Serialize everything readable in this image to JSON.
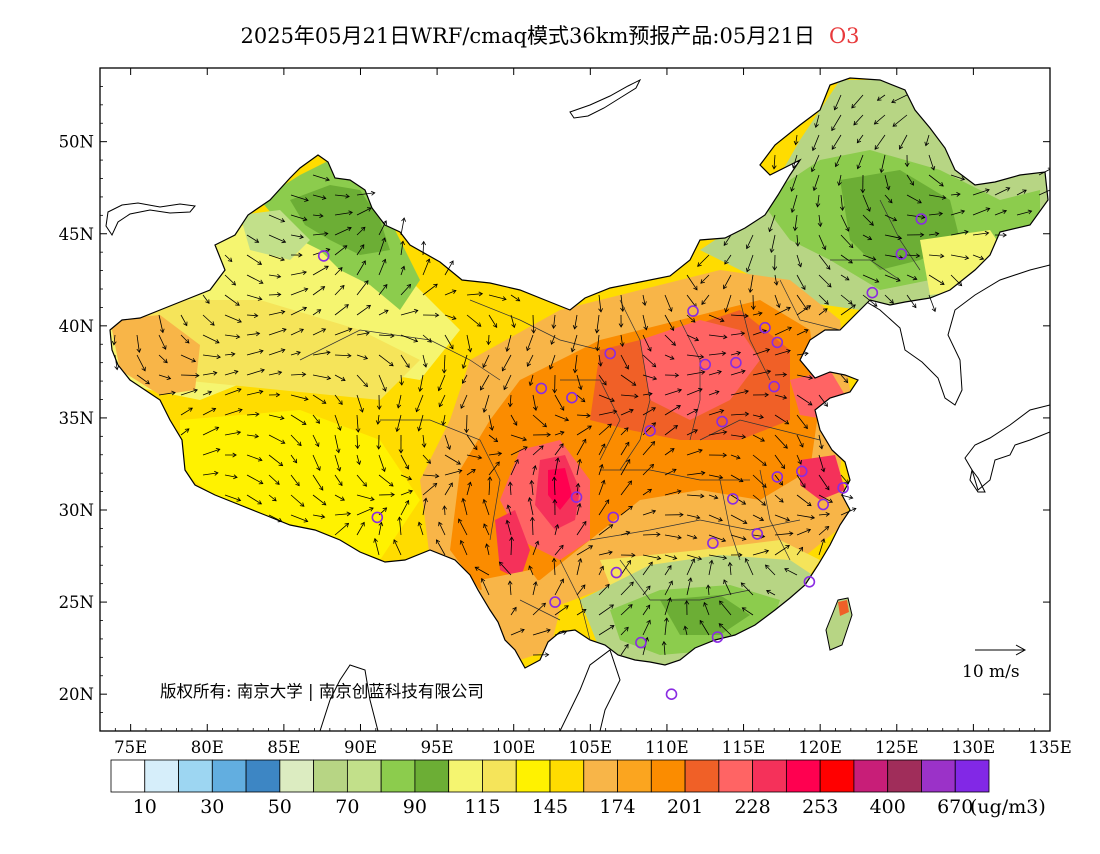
{
  "title": {
    "text": "2025年05月21日WRF/cmaq模式36km预报产品:05月21日",
    "species": "O3"
  },
  "map": {
    "lon_range": [
      73,
      135
    ],
    "lat_range": [
      18,
      54
    ],
    "lon_ticks": [
      "75E",
      "80E",
      "85E",
      "90E",
      "95E",
      "100E",
      "105E",
      "110E",
      "115E",
      "120E",
      "125E",
      "130E",
      "135E"
    ],
    "lat_ticks": [
      "50N",
      "45N",
      "40N",
      "35N",
      "30N",
      "25N",
      "20N"
    ],
    "copyright": "版权所有: 南京大学 | 南京创蓝科技有限公司",
    "wind_reference": "10 m/s",
    "units": "(ug/m3)"
  },
  "colorbar": {
    "colors": [
      "#ffffff",
      "#d6eefa",
      "#9dd6f2",
      "#62aee0",
      "#3d86c4",
      "#dcecc1",
      "#b7d584",
      "#c2e08a",
      "#8ccc4d",
      "#6cae35",
      "#f5f570",
      "#f5e45a",
      "#fff200",
      "#ffdc00",
      "#f8b548",
      "#fba51f",
      "#fb8c00",
      "#f06027",
      "#ff6464",
      "#f5315a",
      "#ff0050",
      "#ff0000",
      "#c81e78",
      "#a02d5a",
      "#9b32c8",
      "#8228e6"
    ],
    "labels": [
      "10",
      "30",
      "50",
      "70",
      "90",
      "115",
      "145",
      "174",
      "201",
      "228",
      "253",
      "400",
      "670"
    ]
  },
  "stations": [
    {
      "name": "Urumqi",
      "lon": 87.6,
      "lat": 43.8
    },
    {
      "name": "Lhasa",
      "lon": 91.1,
      "lat": 29.6
    },
    {
      "name": "Xining",
      "lon": 101.8,
      "lat": 36.6
    },
    {
      "name": "Lanzhou",
      "lon": 103.8,
      "lat": 36.1
    },
    {
      "name": "Yinchuan",
      "lon": 106.3,
      "lat": 38.5
    },
    {
      "name": "Hohhot",
      "lon": 111.7,
      "lat": 40.8
    },
    {
      "name": "Beijing",
      "lon": 116.4,
      "lat": 39.9
    },
    {
      "name": "Tianjin",
      "lon": 117.2,
      "lat": 39.1
    },
    {
      "name": "Shijiazhuang",
      "lon": 114.5,
      "lat": 38.0
    },
    {
      "name": "Taiyuan",
      "lon": 112.5,
      "lat": 37.9
    },
    {
      "name": "Jinan",
      "lon": 117.0,
      "lat": 36.7
    },
    {
      "name": "Zhengzhou",
      "lon": 113.6,
      "lat": 34.8
    },
    {
      "name": "Xian",
      "lon": 108.9,
      "lat": 34.3
    },
    {
      "name": "Chengdu",
      "lon": 104.1,
      "lat": 30.7
    },
    {
      "name": "Chongqing",
      "lon": 106.5,
      "lat": 29.6
    },
    {
      "name": "Wuhan",
      "lon": 114.3,
      "lat": 30.6
    },
    {
      "name": "Hefei",
      "lon": 117.2,
      "lat": 31.8
    },
    {
      "name": "Nanjing",
      "lon": 118.8,
      "lat": 32.1
    },
    {
      "name": "Shanghai",
      "lon": 121.5,
      "lat": 31.2
    },
    {
      "name": "Hangzhou",
      "lon": 120.2,
      "lat": 30.3
    },
    {
      "name": "Changsha",
      "lon": 113.0,
      "lat": 28.2
    },
    {
      "name": "Nanchang",
      "lon": 115.9,
      "lat": 28.7
    },
    {
      "name": "Fuzhou",
      "lon": 119.3,
      "lat": 26.1
    },
    {
      "name": "Guiyang",
      "lon": 106.7,
      "lat": 26.6
    },
    {
      "name": "Kunming",
      "lon": 102.7,
      "lat": 25.0
    },
    {
      "name": "Nanning",
      "lon": 108.3,
      "lat": 22.8
    },
    {
      "name": "Guangzhou",
      "lon": 113.3,
      "lat": 23.1
    },
    {
      "name": "Haikou",
      "lon": 110.3,
      "lat": 20.0
    },
    {
      "name": "Shenyang",
      "lon": 123.4,
      "lat": 41.8
    },
    {
      "name": "Changchun",
      "lon": 125.3,
      "lat": 43.9
    },
    {
      "name": "Harbin",
      "lon": 126.6,
      "lat": 45.8
    }
  ]
}
